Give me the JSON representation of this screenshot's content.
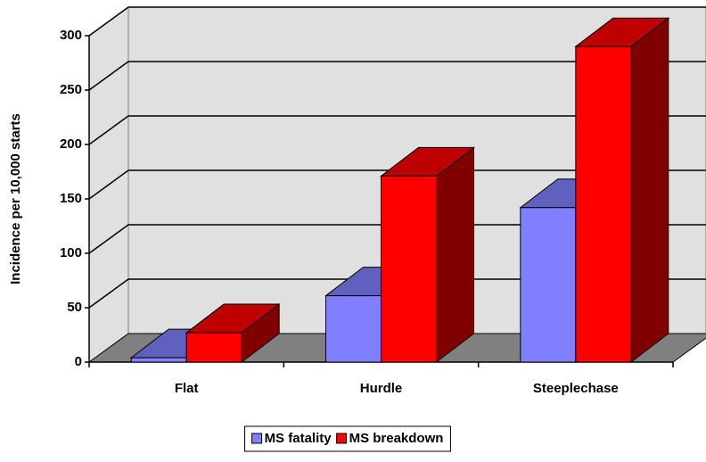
{
  "chart_data": {
    "type": "bar3d",
    "y_label": "Incidence per 10,000 starts",
    "categories": [
      "Flat",
      "Hurdle",
      "Steeplechase"
    ],
    "series": [
      {
        "name": "MS fatality",
        "color": "#8080ff",
        "values": [
          4,
          61,
          142
        ]
      },
      {
        "name": "MS breakdown",
        "color": "#ff0000",
        "values": [
          27,
          171,
          290
        ]
      }
    ],
    "ylim": [
      0,
      300
    ],
    "yticks": [
      0,
      50,
      100,
      150,
      200,
      250,
      300
    ],
    "grid": true,
    "legend": "bottom"
  }
}
